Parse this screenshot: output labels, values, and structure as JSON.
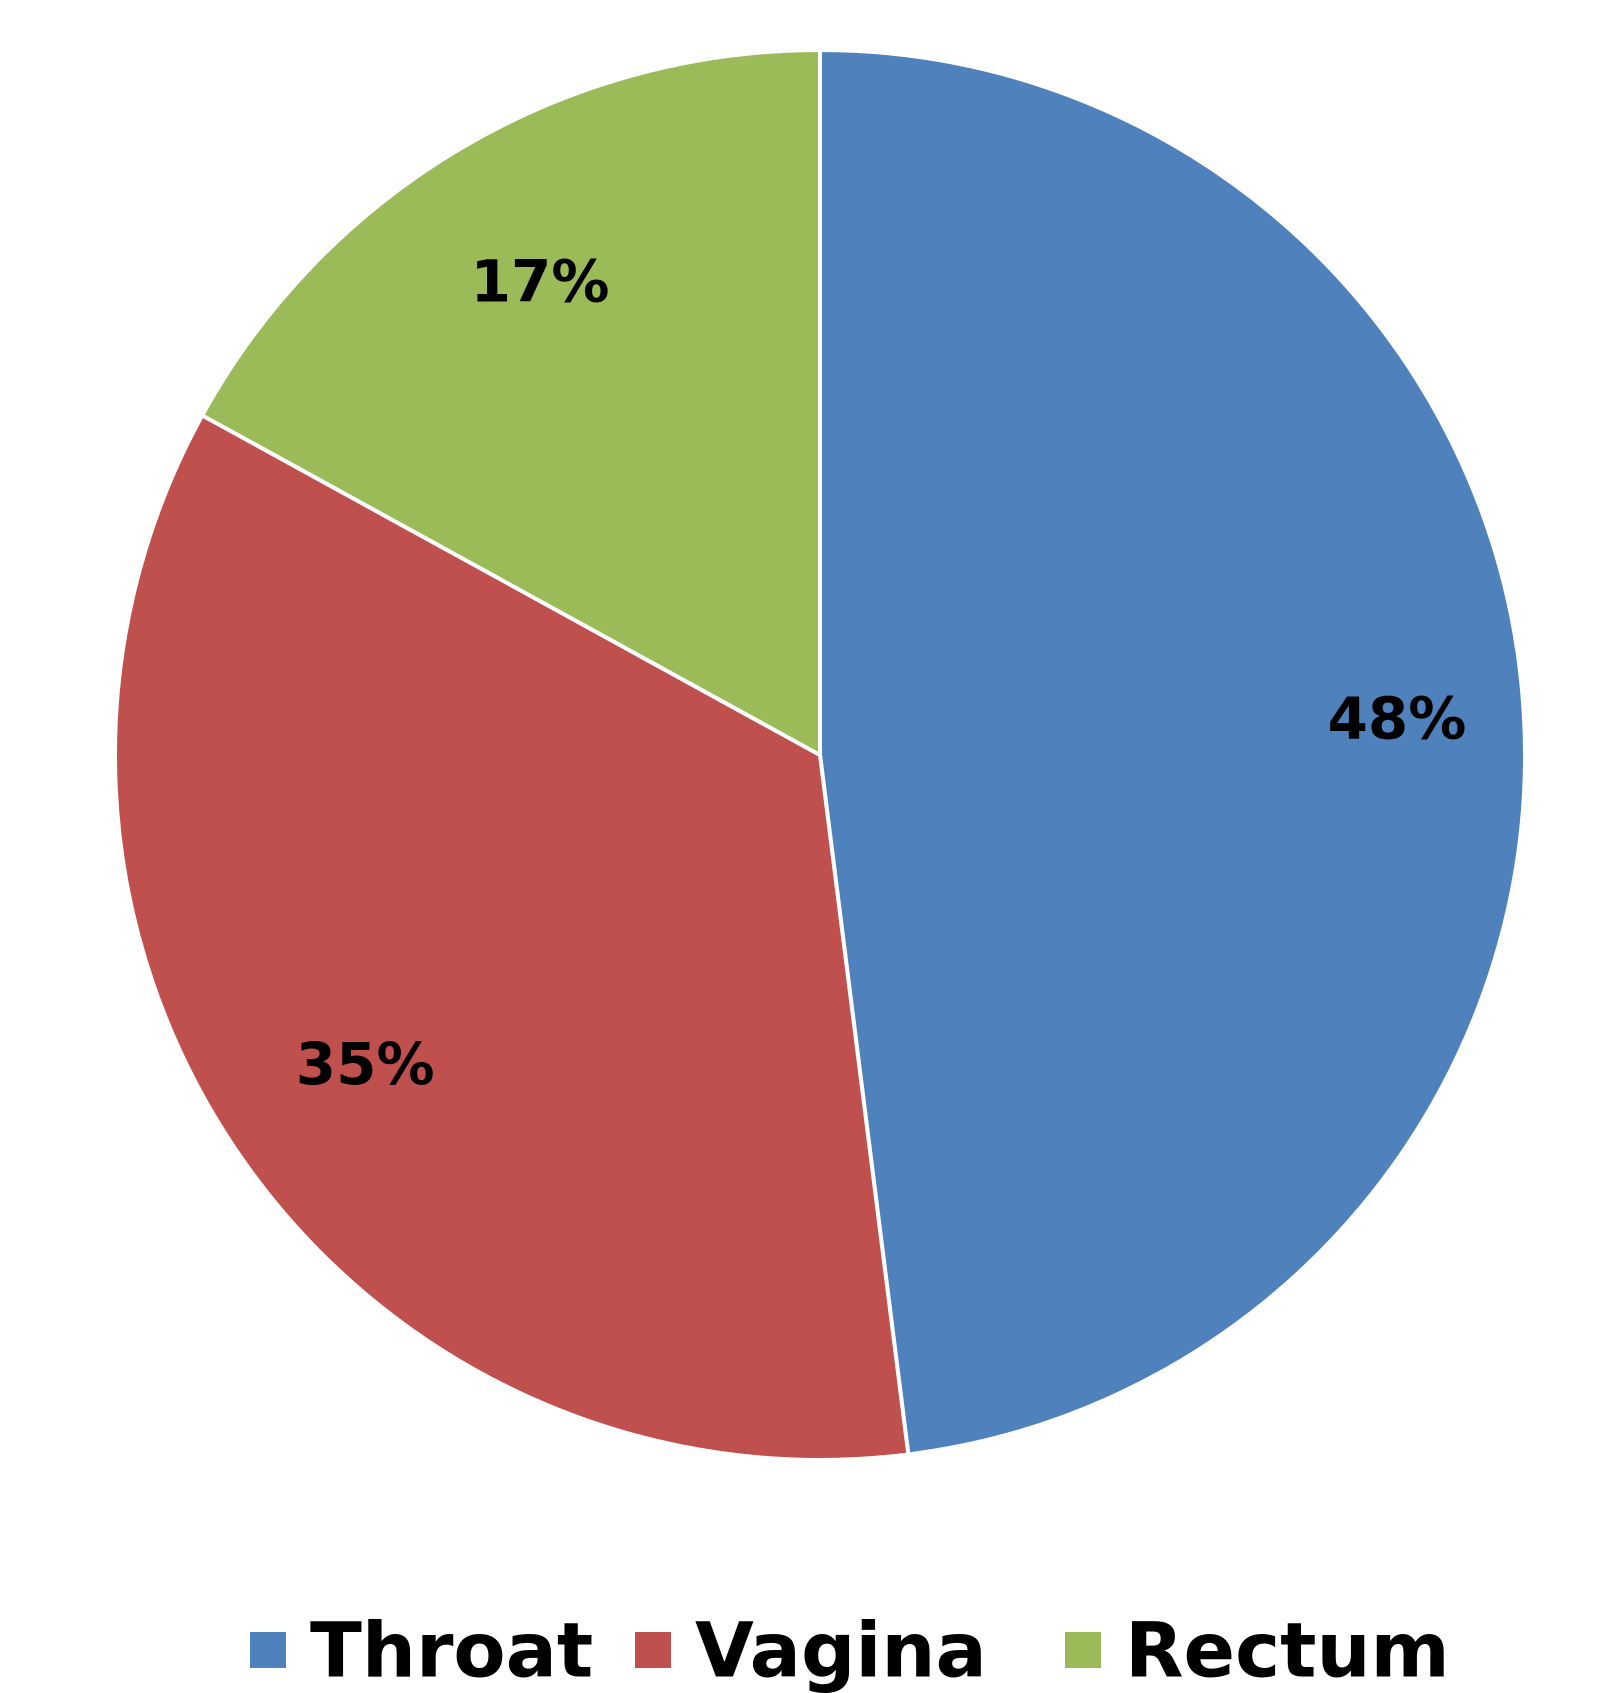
{
  "chart_data": {
    "type": "pie",
    "categories": [
      "Throat",
      "Vagina",
      "Rectum"
    ],
    "values": [
      48,
      35,
      17
    ],
    "data_labels": [
      "48%",
      "35%",
      "17%"
    ],
    "colors": [
      "#4F81BD",
      "#C0504D",
      "#9BBB59"
    ],
    "start_angle": "12 o'clock, clockwise",
    "legend": {
      "position": "bottom",
      "items": [
        {
          "label": "Throat",
          "color": "#4F81BD"
        },
        {
          "label": "Vagina",
          "color": "#C0504D"
        },
        {
          "label": "Rectum",
          "color": "#9BBB59"
        }
      ]
    }
  }
}
